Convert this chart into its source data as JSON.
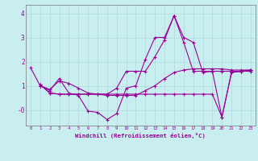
{
  "xlabel": "Windchill (Refroidissement éolien,°C)",
  "background_color": "#c8eef0",
  "grid_color": "#b0d8da",
  "line_color": "#990099",
  "xlim": [
    -0.5,
    23.5
  ],
  "ylim": [
    -0.65,
    4.35
  ],
  "xticks": [
    0,
    1,
    2,
    3,
    4,
    5,
    6,
    7,
    8,
    9,
    10,
    11,
    12,
    13,
    14,
    15,
    16,
    17,
    18,
    19,
    20,
    21,
    22,
    23
  ],
  "yticks": [
    0,
    1,
    2,
    3,
    4
  ],
  "ytick_labels": [
    "-0",
    "1",
    "2",
    "3",
    "4"
  ],
  "series": [
    [
      1.75,
      1.0,
      0.8,
      1.3,
      0.7,
      0.6,
      -0.05,
      -0.1,
      -0.4,
      -0.15,
      0.9,
      1.0,
      2.1,
      3.0,
      3.0,
      3.9,
      3.0,
      2.8,
      1.55,
      1.6,
      -0.3,
      1.55,
      1.6,
      1.65
    ],
    [
      null,
      1.0,
      0.85,
      1.2,
      1.1,
      0.9,
      0.7,
      0.65,
      0.6,
      0.6,
      0.6,
      0.6,
      0.8,
      1.0,
      1.3,
      1.55,
      1.65,
      1.7,
      1.7,
      1.7,
      1.7,
      1.65,
      1.65,
      1.65
    ],
    [
      null,
      1.05,
      0.7,
      0.65,
      0.65,
      0.65,
      0.65,
      0.65,
      0.65,
      0.9,
      1.6,
      1.6,
      1.6,
      2.2,
      2.9,
      3.9,
      2.8,
      1.6,
      1.6,
      1.6,
      1.6,
      1.6,
      1.6,
      1.6
    ],
    [
      null,
      1.05,
      0.7,
      0.65,
      0.65,
      0.65,
      0.65,
      0.65,
      0.65,
      0.65,
      0.65,
      0.65,
      0.65,
      0.65,
      0.65,
      0.65,
      0.65,
      0.65,
      0.65,
      0.65,
      -0.3,
      1.55,
      1.6,
      1.65
    ]
  ]
}
